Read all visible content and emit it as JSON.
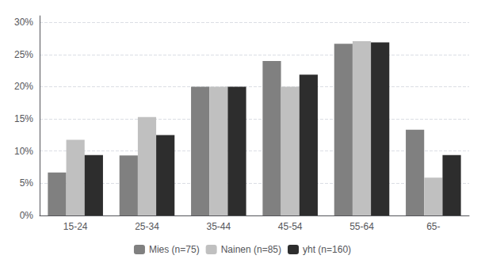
{
  "chart_data": {
    "type": "bar",
    "categories": [
      "15-24",
      "25-34",
      "35-44",
      "45-54",
      "55-64",
      "65-"
    ],
    "series": [
      {
        "name": "Mies (n=75)",
        "color": "#808080",
        "values": [
          0.0667,
          0.0933,
          0.2,
          0.24,
          0.2667,
          0.1333
        ]
      },
      {
        "name": "Nainen (n=85)",
        "color": "#c0c0c0",
        "values": [
          0.1176,
          0.1529,
          0.2,
          0.2,
          0.2706,
          0.0588
        ]
      },
      {
        "name": "yht (n=160)",
        "color": "#2d2d2d",
        "values": [
          0.0938,
          0.125,
          0.2,
          0.2188,
          0.2688,
          0.0938
        ]
      }
    ],
    "ylim": [
      0,
      0.31
    ],
    "yticks": [
      {
        "value": 0.0,
        "label": "0%"
      },
      {
        "value": 0.05,
        "label": "5%"
      },
      {
        "value": 0.1,
        "label": "10%"
      },
      {
        "value": 0.15,
        "label": "15%"
      },
      {
        "value": 0.2,
        "label": "20%"
      },
      {
        "value": 0.25,
        "label": "25%"
      },
      {
        "value": 0.3,
        "label": "30%"
      }
    ],
    "grid": true,
    "legend": "bottom"
  }
}
